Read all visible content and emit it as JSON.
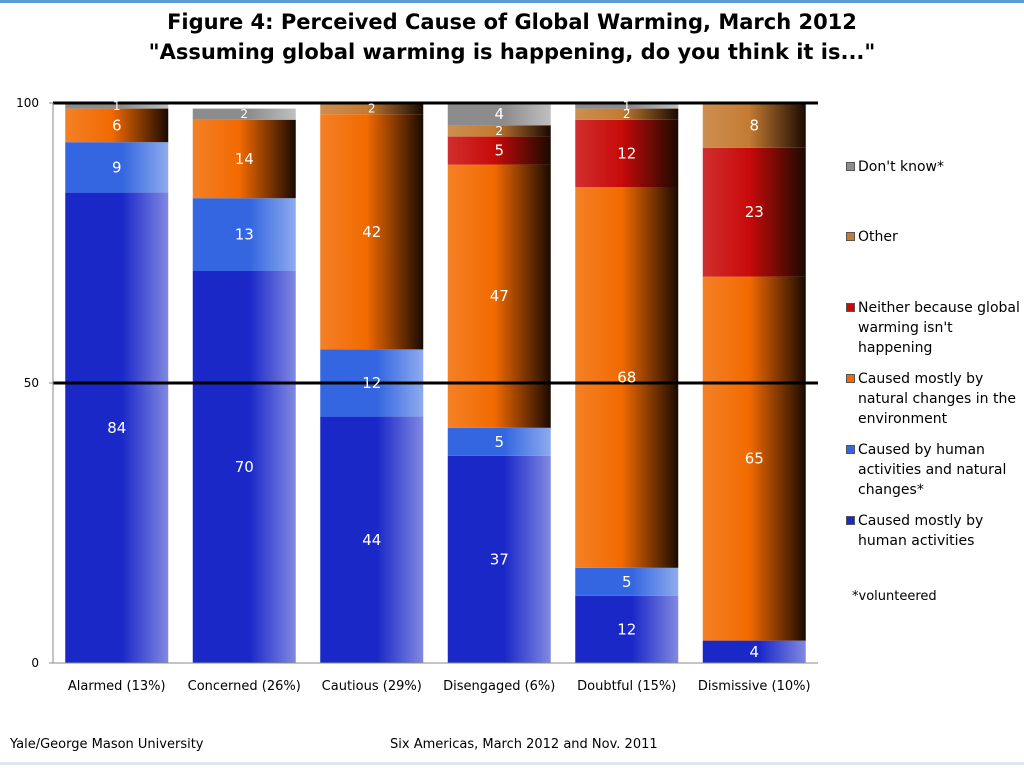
{
  "chart_data": {
    "type": "bar",
    "stacked": true,
    "title": "Figure 4:  Perceived Cause of Global Warming, March 2012",
    "subtitle": "\"Assuming global warming is happening,  do you think it is...\"",
    "xlabel": "",
    "ylabel": "",
    "ylim": [
      0,
      100
    ],
    "yticks": [
      0,
      50,
      100
    ],
    "grid": "major lines at 50 and 100",
    "legend": "right",
    "categories": [
      "Alarmed (13%)",
      "Concerned (26%)",
      "Cautious (29%)",
      "Disengaged (6%)",
      "Doubtful (15%)",
      "Dismissive (10%)"
    ],
    "series": [
      {
        "name": "Caused mostly by human activities",
        "color": "#1a28c8",
        "values": [
          84,
          70,
          44,
          37,
          12,
          4
        ]
      },
      {
        "name": "Caused by human activities and natural changes*",
        "color": "#3366e0",
        "values": [
          9,
          13,
          12,
          5,
          5,
          0
        ]
      },
      {
        "name": "Caused mostly by natural changes in the environment",
        "color": "#f26a00",
        "values": [
          6,
          14,
          42,
          47,
          68,
          65
        ]
      },
      {
        "name": "Neither because global warming isn't happening",
        "color": "#c80a0a",
        "values": [
          0,
          0,
          0,
          5,
          12,
          23
        ]
      },
      {
        "name": "Other",
        "color": "#c47b33",
        "values": [
          0,
          0,
          2,
          2,
          2,
          8
        ]
      },
      {
        "name": "Don't know*",
        "color": "#8c8c8c",
        "values": [
          1,
          2,
          0,
          4,
          1,
          0
        ]
      }
    ],
    "segment_labels": [
      [
        84,
        9,
        6,
        null,
        null,
        1
      ],
      [
        70,
        13,
        14,
        null,
        null,
        2
      ],
      [
        44,
        12,
        42,
        null,
        2,
        null
      ],
      [
        37,
        5,
        47,
        5,
        2,
        4
      ],
      [
        12,
        5,
        68,
        12,
        2,
        1
      ],
      [
        4,
        null,
        65,
        23,
        8,
        null
      ]
    ],
    "legend_order": [
      5,
      4,
      3,
      2,
      1,
      0
    ],
    "note": "*volunteered"
  },
  "footer": {
    "left": "Yale/George Mason University",
    "right": "Six Americas, March 2012 and Nov. 2011"
  }
}
